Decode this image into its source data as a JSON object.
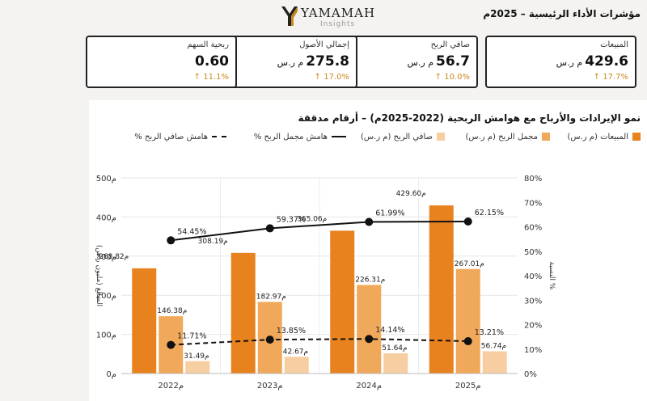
{
  "header": {
    "brand": "YAMAMAH",
    "brand_sub": "Insights",
    "page_title": "مؤشرات الأداء الرئيسية – 2025م"
  },
  "kpis": [
    {
      "label": "المبيعات",
      "value": "429.6",
      "unit": "م ر.س",
      "change": "17.7% ↑"
    },
    {
      "label": "صافي الربح",
      "value": "56.7",
      "unit": "م ر.س",
      "change": "10.0% ↑"
    },
    {
      "label": "إجمالي الأصول",
      "value": "275.8",
      "unit": "م ر.س",
      "change": "17.0% ↑"
    },
    {
      "label": "ربحية السهم",
      "value": "0.60",
      "unit": "",
      "change": "11.1% ↑"
    }
  ],
  "colors": {
    "sales": "#e8821f",
    "gross": "#f0a85a",
    "net": "#f7cda2",
    "kpi_change": "#c88a1c"
  },
  "chart_data": {
    "type": "bar",
    "title": "نمو الإيرادات والأرباح مع هوامش الربحية (2022-2025م) – أرقام مدققة",
    "categories": [
      "2022م",
      "2023م",
      "2024م",
      "2025م"
    ],
    "series": [
      {
        "name": "المبيعات (م ر.س)",
        "type": "bar",
        "values": [
          268.82,
          308.19,
          365.06,
          429.6
        ],
        "labels": [
          "268.82م",
          "308.19م",
          "365.06م",
          "429.60م"
        ]
      },
      {
        "name": "مجمل الربح (م ر.س)",
        "type": "bar",
        "values": [
          146.38,
          182.97,
          226.31,
          267.01
        ],
        "labels": [
          "146.38م",
          "182.97م",
          "226.31م",
          "267.01م"
        ]
      },
      {
        "name": "صافي الربح (م ر.س)",
        "type": "bar",
        "values": [
          31.49,
          42.67,
          51.64,
          56.74
        ],
        "labels": [
          "31.49م",
          "42.67م",
          "51.64م",
          "56.74م"
        ]
      },
      {
        "name": "هامش مجمل الربح %",
        "type": "line",
        "axis": "right",
        "values": [
          54.45,
          59.37,
          61.99,
          62.15
        ],
        "labels": [
          "54.45%",
          "59.37%",
          "61.99%",
          "62.15%"
        ]
      },
      {
        "name": "هامش صافي الربح %",
        "type": "line",
        "dashed": true,
        "axis": "right",
        "values": [
          11.71,
          13.85,
          14.14,
          13.21
        ],
        "labels": [
          "11.71%",
          "13.85%",
          "14.14%",
          "13.21%"
        ]
      }
    ],
    "ylabel_left": "المبالغ (مليون ر.س)",
    "ylabel_right": "النسبة %",
    "ylim_left": [
      0,
      500
    ],
    "ylim_right": [
      0,
      80
    ],
    "left_ticks": [
      "0م",
      "100م",
      "200م",
      "300م",
      "400م",
      "500م"
    ],
    "right_ticks": [
      "0%",
      "10%",
      "20%",
      "30%",
      "40%",
      "50%",
      "60%",
      "70%",
      "80%"
    ],
    "legend_position": "top"
  }
}
